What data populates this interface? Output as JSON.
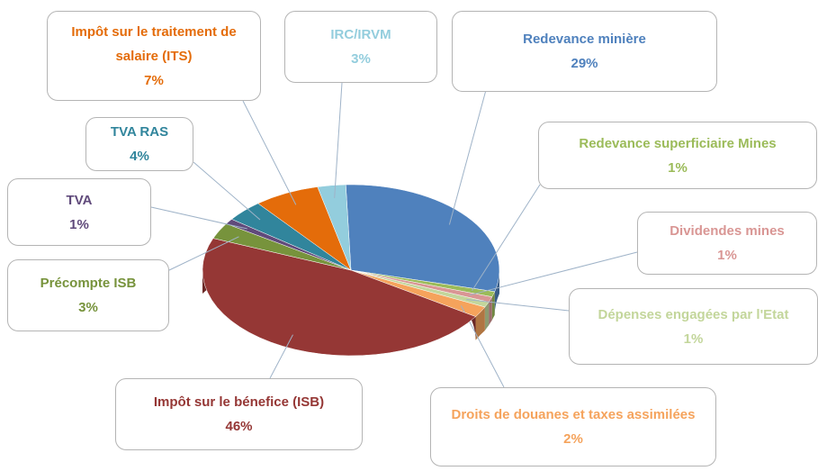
{
  "chart_data": {
    "type": "pie",
    "categories": [
      "Redevance minière",
      "Redevance superficiaire Mines",
      "Dividendes mines",
      "Dépenses engagées par l'Etat",
      "Droits de douanes et taxes assimilées",
      "Impôt  sur le bénefice (ISB)",
      "Précompte ISB",
      "TVA",
      "TVA RAS",
      "Impôt  sur le traitement de salaire (ITS)",
      "IRC/IRVM"
    ],
    "values": [
      29,
      1,
      1,
      1,
      2,
      46,
      3,
      1,
      4,
      7,
      3
    ],
    "value_labels": [
      "29%",
      "1%",
      "1%",
      "1%",
      "2%",
      "46%",
      "3%",
      "1%",
      "4%",
      "7%",
      "3%"
    ],
    "colors": [
      "#4f81bd",
      "#9bbb59",
      "#d99694",
      "#c3d69b",
      "#f5a35c",
      "#953735",
      "#77933c",
      "#604a7b",
      "#31859c",
      "#e46c0a",
      "#93cddd"
    ]
  }
}
